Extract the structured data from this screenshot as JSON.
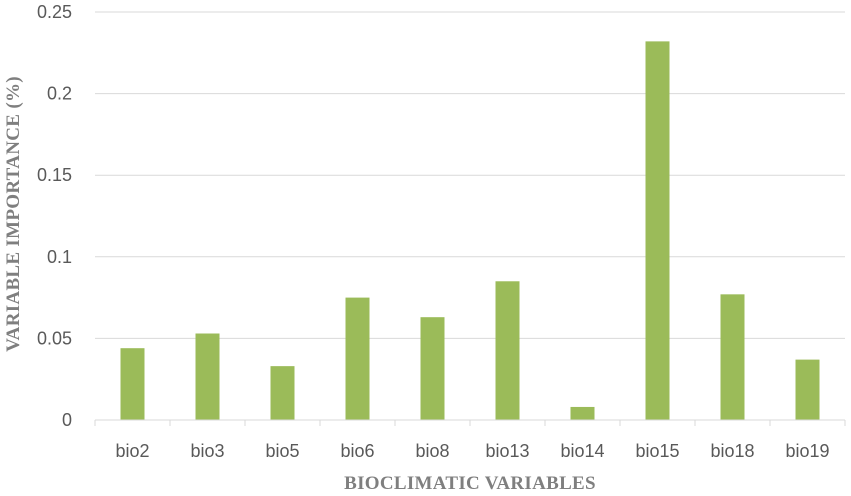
{
  "chart_data": {
    "type": "bar",
    "title": "",
    "xlabel": "BIOCLIMATIC VARIABLES",
    "ylabel": "VARIABLE IMPORTANCE (%)",
    "categories": [
      "bio2",
      "bio3",
      "bio5",
      "bio6",
      "bio8",
      "bio13",
      "bio14",
      "bio15",
      "bio18",
      "bio19"
    ],
    "values": [
      0.044,
      0.053,
      0.033,
      0.075,
      0.063,
      0.085,
      0.008,
      0.232,
      0.077,
      0.037
    ],
    "ylim": [
      0,
      0.25
    ],
    "yticks": [
      "0",
      "0.05",
      "0.1",
      "0.15",
      "0.2",
      "0.25"
    ],
    "grid": true,
    "colors": {
      "bar": "#9bbb59",
      "grid": "#d9d9d9",
      "axis": "#d9d9d9"
    }
  }
}
